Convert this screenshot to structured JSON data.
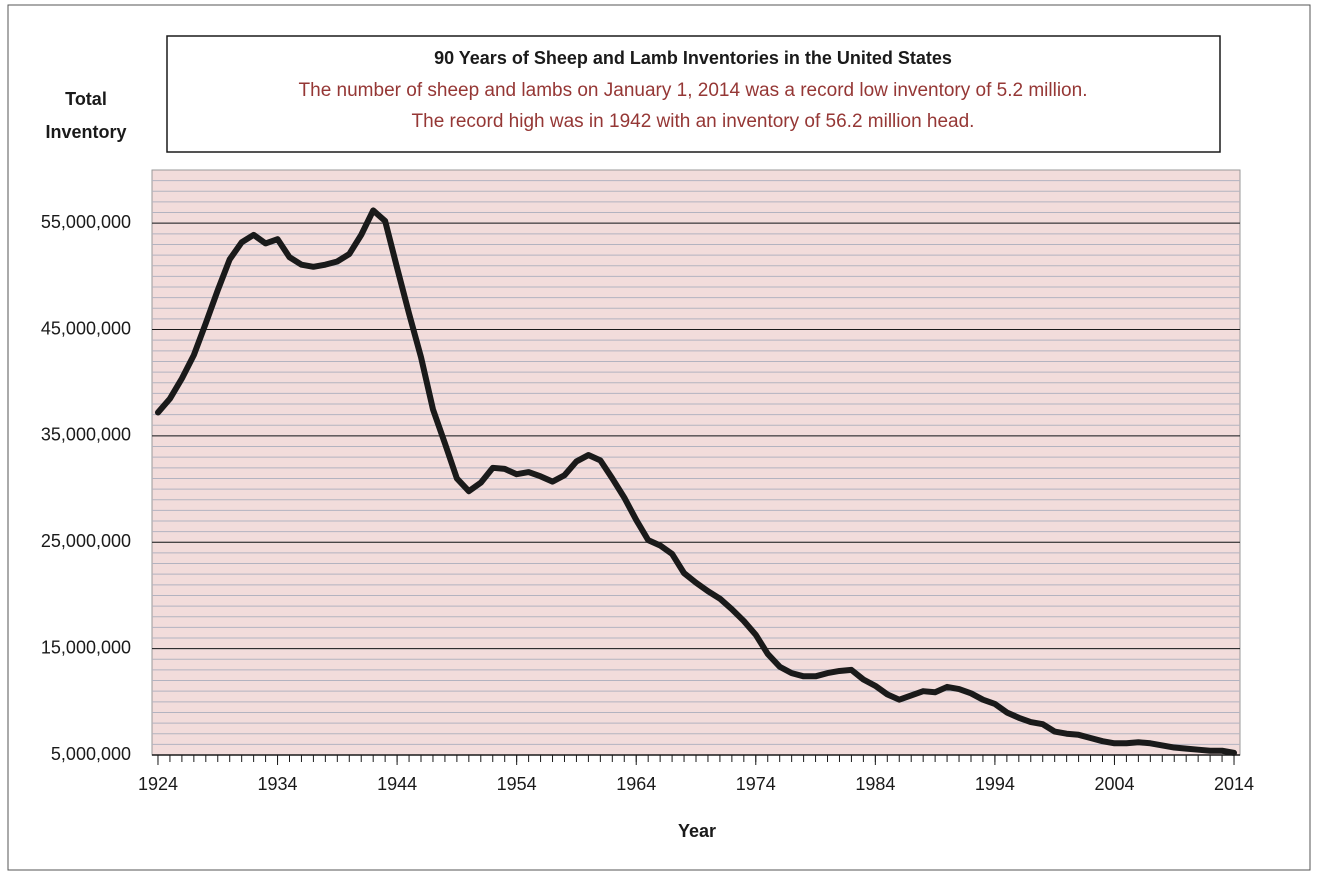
{
  "chart_data": {
    "type": "line",
    "title": "90 Years of Sheep and Lamb Inventories in the United States",
    "subtitle": [
      "The number of sheep and lambs on January 1, 2014 was a record low inventory of 5.2 million.",
      "The record high was in 1942 with an inventory of 56.2 million head."
    ],
    "y_label": [
      "Total",
      "Inventory"
    ],
    "x_label": "Year",
    "color": "#1a1a1a",
    "background": "#f2dcdb",
    "grid": true,
    "minor_grid_step": 1000000,
    "x": [
      1924,
      1925,
      1926,
      1927,
      1928,
      1929,
      1930,
      1931,
      1932,
      1933,
      1934,
      1935,
      1936,
      1937,
      1938,
      1939,
      1940,
      1941,
      1942,
      1943,
      1944,
      1945,
      1946,
      1947,
      1948,
      1949,
      1950,
      1951,
      1952,
      1953,
      1954,
      1955,
      1956,
      1957,
      1958,
      1959,
      1960,
      1961,
      1962,
      1963,
      1964,
      1965,
      1966,
      1967,
      1968,
      1969,
      1970,
      1971,
      1972,
      1973,
      1974,
      1975,
      1976,
      1977,
      1978,
      1979,
      1980,
      1981,
      1982,
      1983,
      1984,
      1985,
      1986,
      1987,
      1988,
      1989,
      1990,
      1991,
      1992,
      1993,
      1994,
      1995,
      1996,
      1997,
      1998,
      1999,
      2000,
      2001,
      2002,
      2003,
      2004,
      2005,
      2006,
      2007,
      2008,
      2009,
      2010,
      2011,
      2012,
      2013,
      2014
    ],
    "values": [
      37200000,
      38500000,
      40400000,
      42600000,
      45600000,
      48700000,
      51600000,
      53200000,
      53900000,
      53100000,
      53500000,
      51800000,
      51100000,
      50900000,
      51100000,
      51400000,
      52100000,
      53900000,
      56200000,
      55200000,
      50800000,
      46500000,
      42400000,
      37500000,
      34300000,
      31000000,
      29800000,
      30600000,
      32000000,
      31900000,
      31400000,
      31600000,
      31200000,
      30700000,
      31300000,
      32600000,
      33200000,
      32700000,
      31000000,
      29200000,
      27100000,
      25200000,
      24700000,
      23900000,
      22100000,
      21200000,
      20400000,
      19700000,
      18700000,
      17600000,
      16300000,
      14500000,
      13300000,
      12700000,
      12400000,
      12400000,
      12700000,
      12900000,
      13000000,
      12100000,
      11500000,
      10700000,
      10200000,
      10600000,
      11000000,
      10900000,
      11400000,
      11200000,
      10800000,
      10200000,
      9800000,
      9000000,
      8500000,
      8100000,
      7900000,
      7200000,
      7000000,
      6900000,
      6600000,
      6300000,
      6100000,
      6100000,
      6200000,
      6100000,
      5900000,
      5700000,
      5600000,
      5500000,
      5400000,
      5400000,
      5200000
    ],
    "xlim": [
      1923.5,
      2014.5
    ],
    "xticks": [
      1924,
      1934,
      1944,
      1954,
      1964,
      1974,
      1984,
      1994,
      2004,
      2014
    ],
    "ylim": [
      5000000,
      60000000
    ],
    "yticks": [
      {
        "value": 5000000,
        "label": "5,000,000"
      },
      {
        "value": 15000000,
        "label": "15,000,000"
      },
      {
        "value": 25000000,
        "label": "25,000,000"
      },
      {
        "value": 35000000,
        "label": "35,000,000"
      },
      {
        "value": 45000000,
        "label": "45,000,000"
      },
      {
        "value": 55000000,
        "label": "55,000,000"
      }
    ]
  }
}
